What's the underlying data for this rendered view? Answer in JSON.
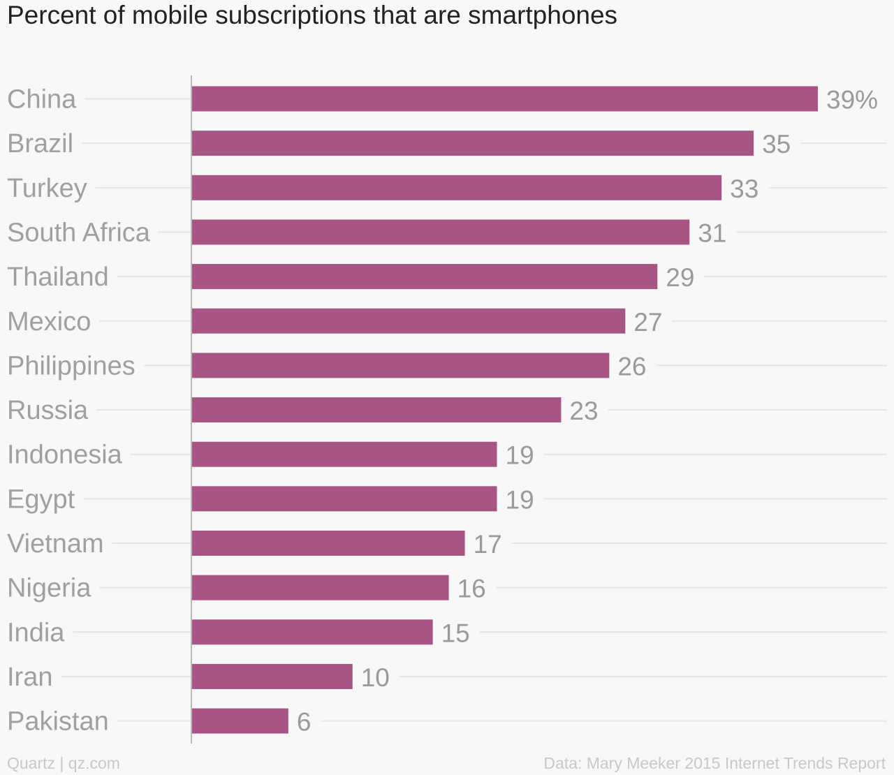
{
  "title": "Percent of mobile subscriptions that are smartphones",
  "footer": {
    "brand": "Quartz | qz.com",
    "source": "Data: Mary Meeker 2015 Internet Trends Report"
  },
  "colors": {
    "bar": "#a85586",
    "label": "#a0a0a0",
    "value": "#9a9a9a",
    "grid": "#e6e6e6",
    "axis": "#b8b8b8"
  },
  "chart_data": {
    "type": "bar",
    "orientation": "horizontal",
    "title": "Percent of mobile subscriptions that are smartphones",
    "categories": [
      "China",
      "Brazil",
      "Turkey",
      "South Africa",
      "Thailand",
      "Mexico",
      "Philippines",
      "Russia",
      "Indonesia",
      "Egypt",
      "Vietnam",
      "Nigeria",
      "India",
      "Iran",
      "Pakistan"
    ],
    "values": [
      39,
      35,
      33,
      31,
      29,
      27,
      26,
      23,
      19,
      19,
      17,
      16,
      15,
      10,
      6
    ],
    "value_labels": [
      "39%",
      "35",
      "33",
      "31",
      "29",
      "27",
      "26",
      "23",
      "19",
      "19",
      "17",
      "16",
      "15",
      "10",
      "6"
    ],
    "xlim": [
      0,
      39
    ],
    "xlabel": "",
    "ylabel": "",
    "grid": true,
    "legend": "none"
  }
}
